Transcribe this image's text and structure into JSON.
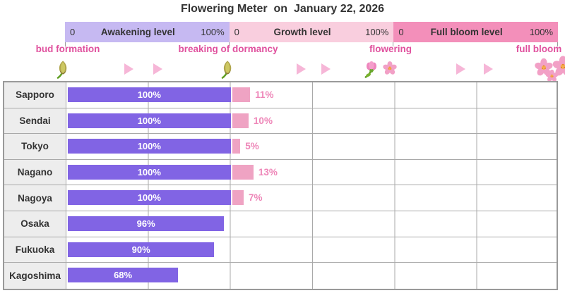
{
  "chart_data": {
    "type": "bar",
    "orientation": "horizontal",
    "title": "Flowering Meter  on  January 22, 2026",
    "categories": [
      "Sapporo",
      "Sendai",
      "Tokyo",
      "Nagano",
      "Nagoya",
      "Osaka",
      "Fukuoka",
      "Kagoshima"
    ],
    "series": [
      {
        "name": "Awakening level",
        "values": [
          100,
          100,
          100,
          100,
          100,
          96,
          90,
          68
        ],
        "color": "#8164e4",
        "legend_color": "#c6b9f2"
      },
      {
        "name": "Growth level",
        "values": [
          11,
          10,
          5,
          13,
          7,
          null,
          null,
          null
        ],
        "color": "#efa3c3",
        "legend_color": "#f9cede"
      },
      {
        "name": "Full bloom level",
        "values": [
          null,
          null,
          null,
          null,
          null,
          null,
          null,
          null
        ],
        "color": "#f390bb",
        "legend_color": "#f38fba"
      }
    ],
    "axis_min_label": "0",
    "axis_max_label": "100%",
    "value_suffix": "%",
    "stage_labels": [
      "bud formation",
      "breaking of dormancy",
      "flowering",
      "full bloom"
    ],
    "stage_icons": [
      "bud-icon",
      "bud-icon",
      "tulip-and-blossom-icon",
      "blossom-cluster-icon"
    ],
    "separator_icon": "triangle-right-icon",
    "xlim_per_segment": [
      0,
      100
    ],
    "grid": true,
    "legend_position": "top"
  },
  "colors": {
    "stage_label_text": "#e0519e",
    "grid_line": "#a9a9a9",
    "outer_border": "#9a9a9a",
    "row_label_bg": "#ededed",
    "title_text": "#333333",
    "awakening_value_text": "#ffffff",
    "growth_value_text": "#ee86b8",
    "separator_triangle": "#f6b6d7"
  }
}
